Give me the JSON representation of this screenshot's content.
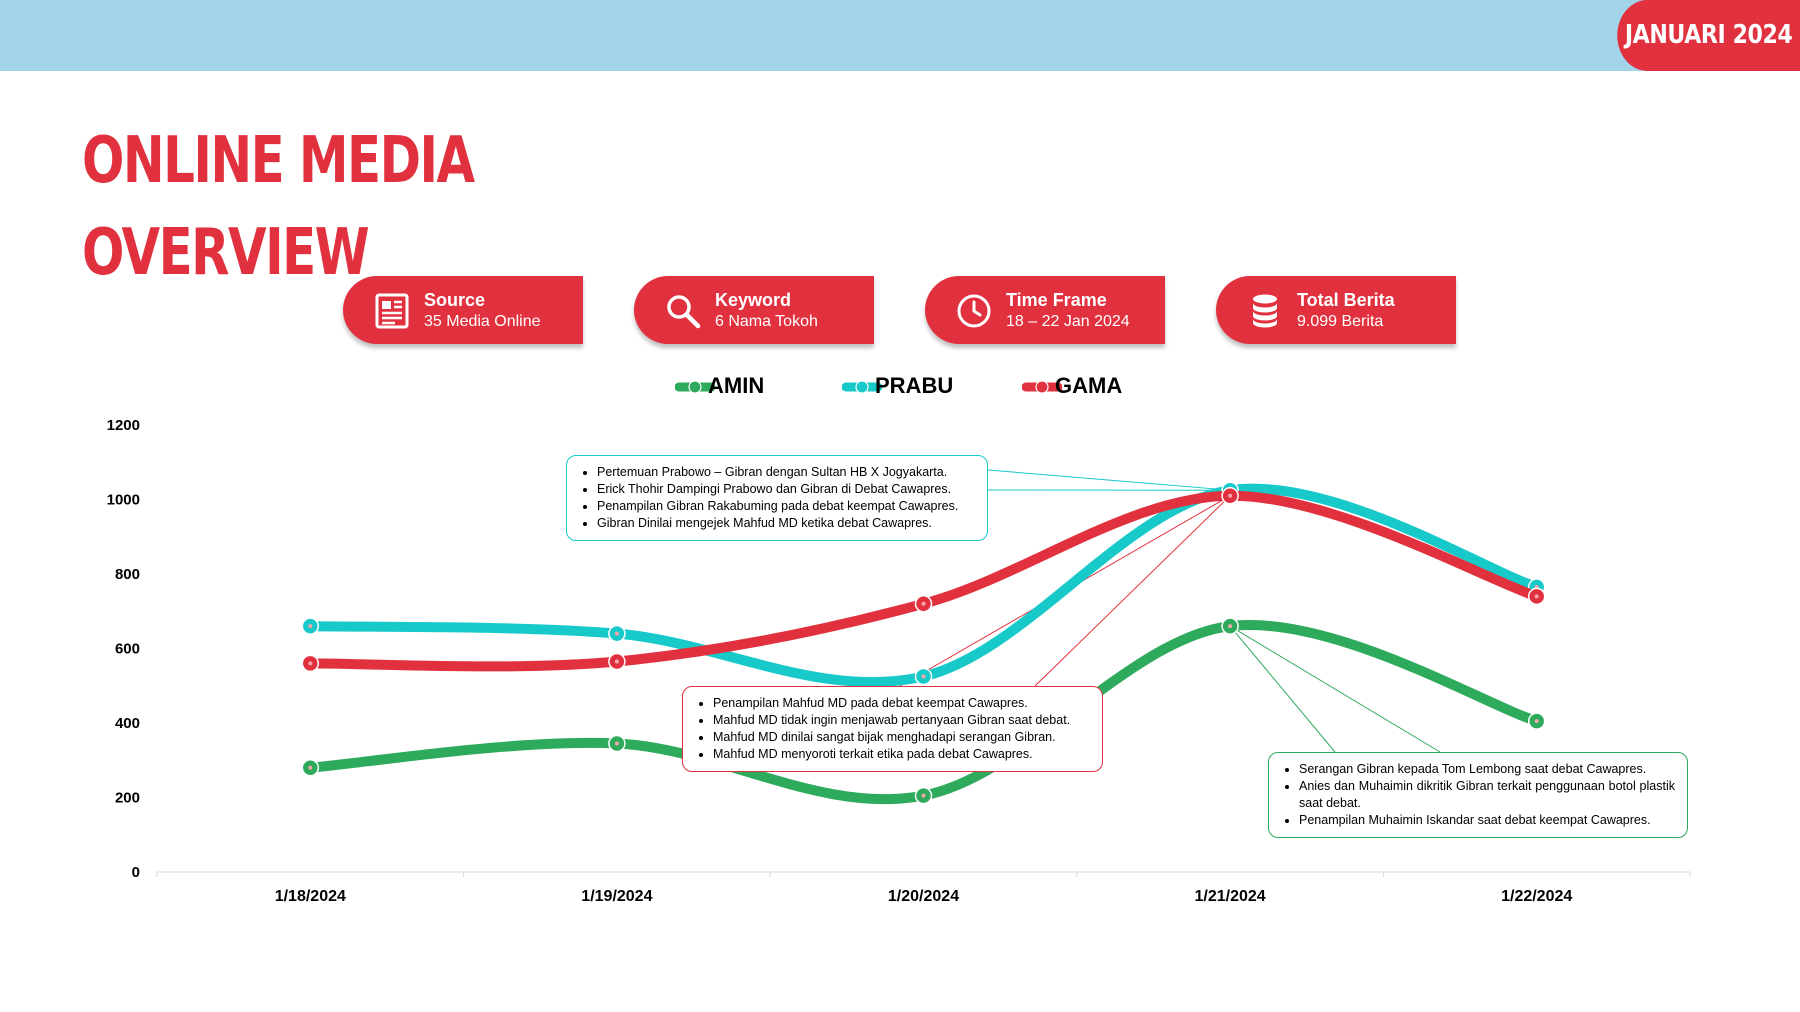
{
  "header": {
    "date_badge": "JANUARI 2024"
  },
  "title": {
    "line1": "ONLINE MEDIA",
    "line2": "OVERVIEW"
  },
  "colors": {
    "accent": "#e2313e",
    "top_bar": "#a2d4ea",
    "amin": "#2eaa5c",
    "prabu": "#17c9c9",
    "gama": "#e2313e"
  },
  "info_cards": [
    {
      "label": "Source",
      "value": "35 Media Online",
      "icon": "newspaper-icon"
    },
    {
      "label": "Keyword",
      "value": "6 Nama Tokoh",
      "icon": "search-icon"
    },
    {
      "label": "Time Frame",
      "value": "18 – 22 Jan 2024",
      "icon": "clock-icon"
    },
    {
      "label": "Total Berita",
      "value": "9.099 Berita",
      "icon": "database-icon"
    }
  ],
  "chart_data": {
    "type": "line",
    "categories": [
      "1/18/2024",
      "1/19/2024",
      "1/20/2024",
      "1/21/2024",
      "1/22/2024"
    ],
    "ylim": [
      0,
      1200
    ],
    "yticks": [
      0,
      200,
      400,
      600,
      800,
      1000,
      1200
    ],
    "series": [
      {
        "name": "AMIN",
        "values": [
          280,
          345,
          205,
          660,
          405
        ]
      },
      {
        "name": "PRABU",
        "values": [
          660,
          640,
          525,
          1025,
          765
        ]
      },
      {
        "name": "GAMA",
        "values": [
          560,
          565,
          720,
          1010,
          740
        ]
      }
    ],
    "legend": "top-center",
    "annotations": [
      {
        "series": "PRABU",
        "items": [
          "Pertemuan Prabowo – Gibran dengan Sultan HB X Jogyakarta.",
          "Erick Thohir Dampingi Prabowo dan Gibran di Debat Cawapres.",
          "Penampilan Gibran Rakabuming pada debat keempat Cawapres.",
          "Gibran Dinilai mengejek Mahfud MD ketika debat Cawapres."
        ]
      },
      {
        "series": "GAMA",
        "items": [
          "Penampilan Mahfud MD pada debat keempat Cawapres.",
          "Mahfud MD tidak ingin menjawab pertanyaan Gibran saat debat.",
          "Mahfud MD dinilai sangat bijak menghadapi serangan Gibran.",
          "Mahfud MD menyoroti terkait etika pada debat Cawapres."
        ]
      },
      {
        "series": "AMIN",
        "items": [
          "Serangan Gibran kepada Tom Lembong saat debat Cawapres.",
          "Anies dan Muhaimin dikritik Gibran terkait penggunaan botol plastik saat debat.",
          "Penampilan Muhaimin Iskandar saat debat keempat Cawapres."
        ]
      }
    ]
  }
}
